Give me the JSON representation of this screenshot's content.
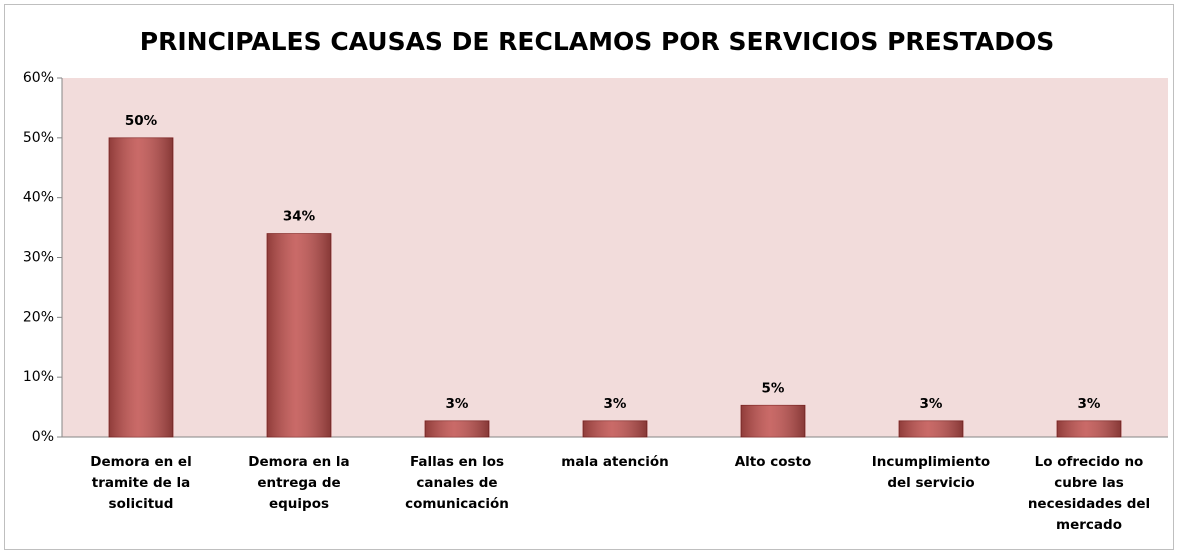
{
  "chart_data": {
    "type": "bar",
    "title": "PRINCIPALES CAUSAS DE RECLAMOS POR SERVICIOS PRESTADOS",
    "categories": [
      "Demora en el tramite de la solicitud",
      "Demora en la entrega de equipos",
      "Fallas en los canales de comunicación",
      "mala atención",
      "Alto costo",
      "Incumplimiento del servicio",
      "Lo ofrecido no cubre las necesidades del mercado"
    ],
    "values": [
      50,
      34,
      2.7,
      2.7,
      5.3,
      2.7,
      2.7
    ],
    "value_labels": [
      "50%",
      "34%",
      "3%",
      "3%",
      "5%",
      "3%",
      "3%"
    ],
    "color": "#c0504d",
    "ylim": [
      0,
      60
    ],
    "yticks": [
      {
        "value": 0,
        "label": "0%"
      },
      {
        "value": 10,
        "label": "10%"
      },
      {
        "value": 20,
        "label": "20%"
      },
      {
        "value": 30,
        "label": "30%"
      },
      {
        "value": 40,
        "label": "40%"
      },
      {
        "value": 50,
        "label": "50%"
      },
      {
        "value": 60,
        "label": "60%"
      }
    ],
    "grid": false
  }
}
